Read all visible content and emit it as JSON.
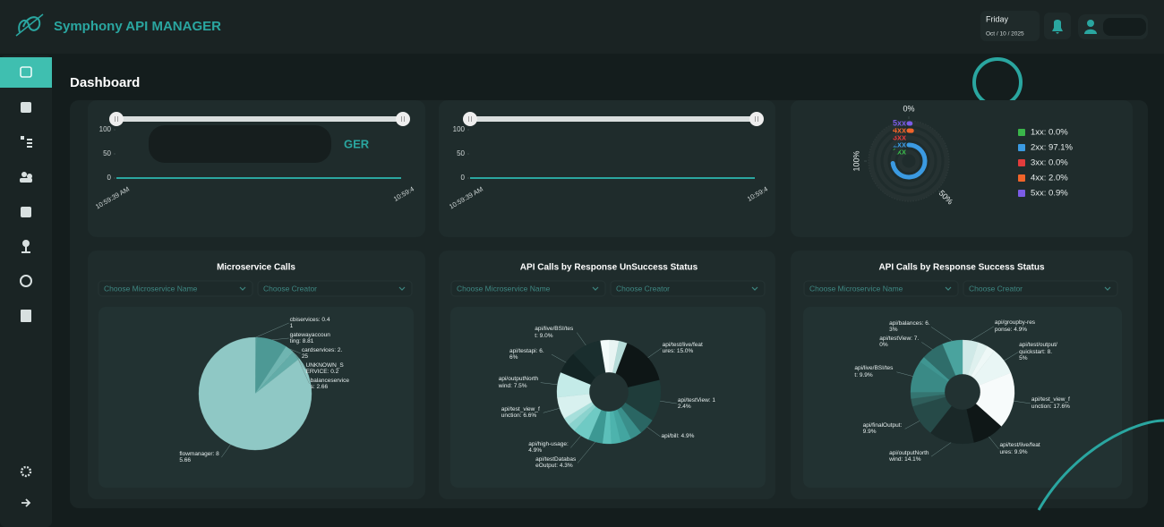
{
  "header": {
    "logo_text": "Symphony API MANAGER",
    "day": "Friday",
    "date": "Oct / 10 / 2025"
  },
  "page_title": "Dashboard",
  "chart_data": [
    {
      "type": "line",
      "watermark": "GER",
      "categories": [
        "10:59:39 AM",
        "10:59:4"
      ],
      "values": [
        0,
        0
      ],
      "color": "#2aa6a0",
      "ylim": [
        0,
        100
      ],
      "yticks": [
        0,
        50,
        100
      ]
    },
    {
      "type": "line",
      "categories": [
        "10:59:39 AM",
        "10:59:4"
      ],
      "values": [
        0,
        0
      ],
      "color": "#2aa6a0",
      "ylim": [
        0,
        100
      ],
      "yticks": [
        0,
        50,
        100
      ]
    },
    {
      "type": "radialBar",
      "categories": [
        "1xx",
        "2xx",
        "3xx",
        "4xx",
        "5xx"
      ],
      "values": [
        0.0,
        97.1,
        0.0,
        2.0,
        0.9
      ],
      "value_labels": [
        "1xx: 0.0%",
        "2xx: 97.1%",
        "3xx: 0.0%",
        "4xx: 2.0%",
        "5xx: 0.9%"
      ],
      "colors": [
        "#3ab54a",
        "#3b9ae1",
        "#e23c3c",
        "#f0642a",
        "#7b5ce6"
      ],
      "rlim": [
        0,
        100
      ],
      "rticks": [
        {
          "value": 0,
          "label": "0%"
        },
        {
          "value": 50,
          "label": "50%"
        },
        {
          "value": 100,
          "label": "100%"
        }
      ]
    },
    {
      "type": "pie",
      "title": "Microservice Calls",
      "filters": [
        "Choose Microservice Name",
        "Choose Creator"
      ],
      "values": [
        0.41,
        8.81,
        2.25,
        0.2,
        2.66,
        85.66
      ],
      "value_labels": [
        "cbiservices: 0.41",
        "gatewayaccounting: 8.81",
        "cardservices: 2.25",
        "UNKNOWN_SERVICE: 0.2",
        "balanceservices: 2.66",
        "flowmanager: 85.66"
      ],
      "colors": [
        "#5fa6a2",
        "#4d9995",
        "#6fb5b1",
        "#7dbdb9",
        "#62aca8",
        "#8fc8c5"
      ]
    },
    {
      "type": "donut",
      "title": "API Calls by Response UnSuccess Status",
      "filters": [
        "Choose Microservice Name",
        "Choose Creator"
      ],
      "values": [
        3.0,
        2.5,
        15.0,
        12.4,
        4.9,
        3.5,
        3.2,
        2.8,
        2.6,
        4.3,
        4.9,
        2.4,
        2.3,
        6.6,
        7.5,
        6.6,
        9.0,
        2.5
      ],
      "value_labels": [
        null,
        null,
        "api/test/live/features: 15.0%",
        "api/testView: 12.4%",
        "api/bill: 4.9%",
        null,
        null,
        null,
        null,
        "api/testDatabaseOutput: 4.3%",
        "api/high-usage: 4.9%",
        null,
        null,
        "api/test_view_function: 6.6%",
        "api/outputNorthwind: 7.5%",
        "api/testapi: 6.6%",
        "api/live/BSI/test: 9.0%",
        null
      ],
      "colors": [
        "#e8f4f3",
        "#b6dcd9",
        "#0e1616",
        "#1f3c3a",
        "#2a6663",
        "#3a8f8b",
        "#43a5a0",
        "#4db3ad",
        "#5cc0ba",
        "#3c9893",
        "#6fcac4",
        "#8ad3ce",
        "#a6dfdb",
        "#d8f1ef",
        "#c4ebe8",
        "#132424",
        "#1a2e2e",
        "#f2fbfa"
      ]
    },
    {
      "type": "donut",
      "title": "API Calls by Response Success Status",
      "filters": [
        "Choose Microservice Name",
        "Choose Creator"
      ],
      "values": [
        4.9,
        3.0,
        2.6,
        8.5,
        17.6,
        9.9,
        14.1,
        9.9,
        2.4,
        2.0,
        9.9,
        1.9,
        7.0,
        6.3
      ],
      "value_labels": [
        "api/groupby-response: 4.9%",
        null,
        null,
        "api/test/output/quickstart: 8.5%",
        "api/test_view_function: 17.6%",
        "api/test/live/features: 9.9%",
        "api/outputNorthwind: 14.1%",
        "api/finalOutput: 9.9%",
        null,
        null,
        "api/live/BSI/test: 9.9%",
        null,
        "api/testView: 7.0%",
        "api/balances: 6.3%"
      ],
      "colors": [
        "#cfe9e7",
        "#dff1ef",
        "#eef8f7",
        "#e9f6f5",
        "#f7fbfb",
        "#0f1717",
        "#1a2828",
        "#264a48",
        "#2f5e5b",
        "#347571",
        "#3a8a86",
        "#3f9591",
        "#2f6d6a",
        "#4aa39e"
      ]
    }
  ]
}
